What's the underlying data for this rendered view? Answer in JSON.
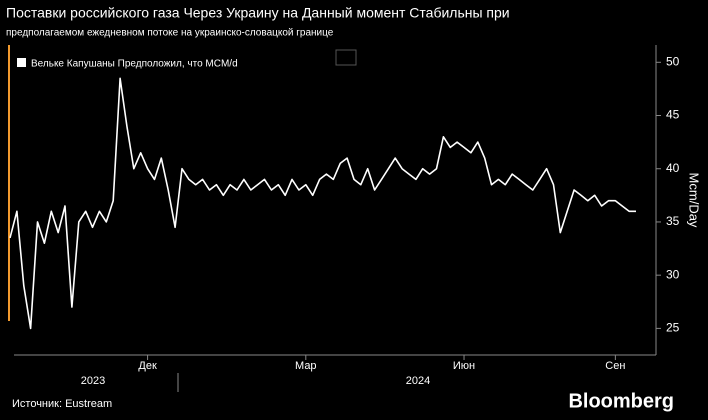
{
  "chart_data": {
    "type": "line",
    "title": "Поставки российского газа Через Украину на Данный момент Стабильны при",
    "subtitle": "предполагаемом ежедневном потоке на украинско-словацкой границе",
    "y_label": "Mcm/Day",
    "source": "Источник: Eustream",
    "brand": "Bloomberg",
    "year_labels": [
      "2023",
      "2024"
    ],
    "categories": [
      null,
      null,
      null,
      null,
      null,
      null,
      null,
      null,
      null,
      null,
      null,
      null,
      null,
      null,
      null,
      null,
      null,
      null,
      null,
      null,
      "Дек",
      null,
      null,
      null,
      null,
      null,
      null,
      null,
      null,
      null,
      null,
      null,
      null,
      null,
      null,
      null,
      null,
      null,
      null,
      null,
      null,
      null,
      null,
      "Мар",
      null,
      null,
      null,
      null,
      null,
      null,
      null,
      null,
      null,
      null,
      null,
      null,
      null,
      null,
      null,
      null,
      null,
      null,
      null,
      null,
      null,
      null,
      "Июн",
      null,
      null,
      null,
      null,
      null,
      null,
      null,
      null,
      null,
      null,
      null,
      null,
      null,
      null,
      null,
      null,
      null,
      null,
      null,
      null,
      null,
      "Сен",
      null,
      null,
      null
    ],
    "series": [
      {
        "name": "Вельке Капушаны Предположил, что MCM/d",
        "color": "#ffffff",
        "values": [
          33.5,
          36,
          29,
          25,
          35,
          33,
          36,
          34,
          36.5,
          27,
          35,
          36,
          34.5,
          36,
          35,
          37,
          48.5,
          44,
          40,
          41.5,
          40,
          39,
          41,
          38,
          34.5,
          40,
          39,
          38.5,
          39,
          38,
          38.5,
          37.5,
          38.5,
          38,
          39,
          38,
          38.5,
          39,
          38,
          38.5,
          37.5,
          39,
          38,
          38.5,
          37.5,
          39,
          39.5,
          39,
          40.5,
          41,
          39,
          38.5,
          40,
          38,
          39,
          40,
          41,
          40,
          39.5,
          39,
          40,
          39.5,
          40,
          43,
          42,
          42.5,
          42,
          41.5,
          42.5,
          41,
          38.5,
          39,
          38.5,
          39.5,
          39,
          38.5,
          38,
          39,
          40,
          38.5,
          34,
          36,
          38,
          37.5,
          37,
          37.5,
          36.5,
          37,
          37,
          36.5,
          36,
          36
        ]
      }
    ],
    "ylim": [
      22.5,
      52
    ],
    "yticks": [
      25,
      30,
      35,
      40,
      45,
      50
    ]
  }
}
